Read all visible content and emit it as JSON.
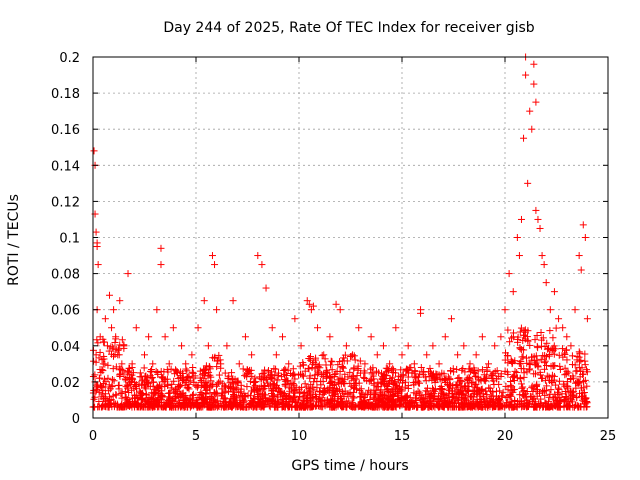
{
  "chart_data": {
    "type": "scatter",
    "title": "Day 244 of 2025, Rate Of TEC Index for receiver gisb",
    "xlabel": "GPS time / hours",
    "ylabel": "ROTI / TECUs",
    "xlim": [
      0,
      25
    ],
    "ylim": [
      0,
      0.2
    ],
    "xticks": [
      0,
      5,
      10,
      15,
      20,
      25
    ],
    "yticks": [
      0,
      0.02,
      0.04,
      0.06,
      0.08,
      0.1,
      0.12,
      0.14,
      0.16,
      0.18,
      0.2
    ],
    "xtick_labels": [
      "0",
      "5",
      "10",
      "15",
      "20",
      "25"
    ],
    "ytick_labels": [
      "0",
      "0.02",
      "0.04",
      "0.06",
      "0.08",
      "0.1",
      "0.12",
      "0.14",
      "0.16",
      "0.18",
      "0.2"
    ],
    "grid": true,
    "marker": "+",
    "color": "#ff0000",
    "series": [
      {
        "name": "ROTI",
        "x": [
          0.05,
          0.1,
          0.1,
          0.15,
          0.2,
          0.2,
          0.25,
          0.2,
          0.15,
          0.1,
          0.35,
          0.5,
          0.6,
          0.7,
          0.8,
          0.9,
          1.0,
          1.1,
          1.2,
          1.3,
          1.4,
          1.5,
          1.7,
          1.9,
          2.1,
          2.3,
          2.5,
          2.7,
          2.9,
          3.1,
          3.3,
          3.3,
          3.5,
          3.7,
          3.9,
          4.1,
          4.3,
          4.5,
          4.8,
          5.1,
          5.4,
          5.6,
          5.8,
          5.9,
          6.0,
          6.2,
          6.5,
          6.8,
          7.1,
          7.4,
          7.7,
          8.0,
          8.2,
          8.4,
          8.7,
          8.9,
          9.2,
          9.5,
          9.8,
          10.1,
          10.4,
          10.5,
          10.6,
          10.7,
          10.9,
          11.2,
          11.5,
          11.8,
          12.0,
          12.3,
          12.6,
          12.9,
          13.2,
          13.5,
          13.8,
          14.1,
          14.4,
          14.7,
          15.0,
          15.3,
          15.6,
          15.9,
          15.9,
          16.2,
          16.5,
          16.8,
          17.1,
          17.4,
          17.7,
          18.0,
          18.3,
          18.6,
          18.9,
          19.2,
          19.5,
          19.8,
          20.0,
          20.2,
          20.4,
          20.6,
          20.7,
          20.8,
          20.9,
          21.0,
          21.0,
          21.1,
          21.2,
          21.3,
          21.4,
          21.4,
          21.5,
          21.5,
          21.6,
          21.7,
          21.8,
          21.9,
          22.0,
          22.2,
          22.4,
          22.6,
          22.8,
          23.0,
          23.2,
          23.4,
          23.6,
          23.7,
          23.8,
          23.9,
          24.0
        ],
        "y": [
          0.148,
          0.14,
          0.113,
          0.103,
          0.097,
          0.095,
          0.085,
          0.06,
          0.035,
          0.02,
          0.045,
          0.03,
          0.055,
          0.04,
          0.068,
          0.05,
          0.06,
          0.045,
          0.035,
          0.065,
          0.03,
          0.04,
          0.08,
          0.03,
          0.05,
          0.025,
          0.035,
          0.045,
          0.03,
          0.06,
          0.094,
          0.085,
          0.045,
          0.03,
          0.05,
          0.025,
          0.04,
          0.03,
          0.035,
          0.05,
          0.065,
          0.04,
          0.09,
          0.085,
          0.06,
          0.03,
          0.04,
          0.065,
          0.03,
          0.045,
          0.035,
          0.09,
          0.085,
          0.072,
          0.05,
          0.035,
          0.045,
          0.03,
          0.055,
          0.04,
          0.065,
          0.063,
          0.06,
          0.062,
          0.05,
          0.035,
          0.045,
          0.063,
          0.06,
          0.04,
          0.035,
          0.05,
          0.03,
          0.045,
          0.035,
          0.04,
          0.03,
          0.05,
          0.035,
          0.04,
          0.03,
          0.06,
          0.058,
          0.035,
          0.04,
          0.03,
          0.045,
          0.055,
          0.035,
          0.04,
          0.03,
          0.035,
          0.045,
          0.03,
          0.04,
          0.045,
          0.06,
          0.08,
          0.07,
          0.1,
          0.09,
          0.11,
          0.155,
          0.2,
          0.19,
          0.13,
          0.17,
          0.16,
          0.196,
          0.185,
          0.175,
          0.115,
          0.11,
          0.105,
          0.09,
          0.085,
          0.075,
          0.06,
          0.07,
          0.055,
          0.05,
          0.045,
          0.04,
          0.06,
          0.09,
          0.082,
          0.107,
          0.1,
          0.055
        ]
      }
    ]
  }
}
